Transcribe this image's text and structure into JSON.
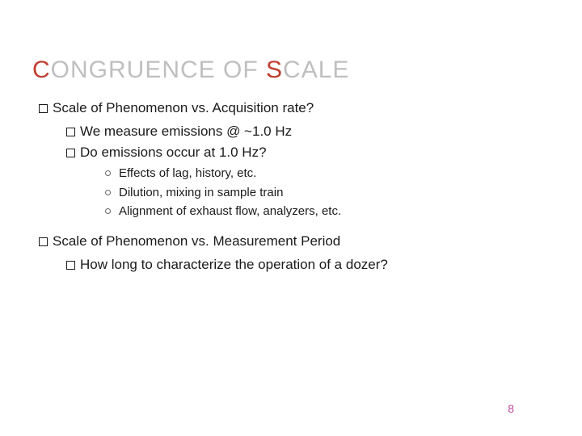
{
  "title_html": "<span style=\"color:#bf3f2f\">C</span><span style=\"color:#bfbfbf\">ONGRUENCE OF </span><span style=\"color:#bf3f2f\">S</span><span style=\"color:#bfbfbf\">CALE</span>",
  "colors": {
    "title_accent": "#bf3f2f",
    "title_muted": "#bfbfbf",
    "body_text": "#1a1a1a",
    "page_num": "#b84aa0",
    "background": "#ffffff"
  },
  "typography": {
    "title_fontsize": 30,
    "body_fontsize": 17,
    "sub_fontsize": 15,
    "pagenum_fontsize": 14
  },
  "bullets": {
    "b1": "Scale of Phenomenon vs. Acquisition rate?",
    "b1a": "We measure emissions @ ~1.0 Hz",
    "b1b": "Do emissions occur at  1.0 Hz?",
    "b1b_i": "Effects of lag, history, etc.",
    "b1b_ii": "Dilution, mixing in sample train",
    "b1b_iii": "Alignment of exhaust flow, analyzers, etc.",
    "b2": "Scale of Phenomenon vs. Measurement Period",
    "b2a": "How long to characterize the operation of a dozer?"
  },
  "page_number": "8"
}
